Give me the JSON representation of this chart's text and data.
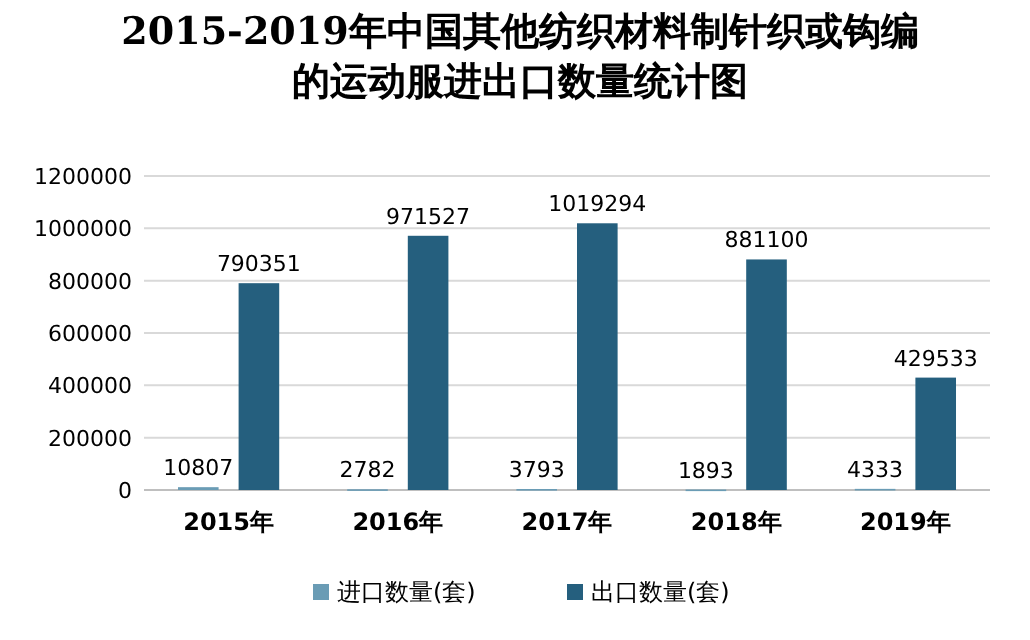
{
  "chart_data": {
    "type": "bar",
    "title": "2015-2019年中国其他纺织材料制针织或钩编的运动服进出口数量统计图",
    "categories": [
      "2015年",
      "2016年",
      "2017年",
      "2018年",
      "2019年"
    ],
    "series": [
      {
        "name": "进口数量(套)",
        "color": "#6a9cb5",
        "values": [
          10807,
          2782,
          3793,
          1893,
          4333
        ]
      },
      {
        "name": "出口数量(套)",
        "color": "#255f7e",
        "values": [
          790351,
          971527,
          1019294,
          881100,
          429533
        ]
      }
    ],
    "ylim": [
      0,
      1200000
    ],
    "yticks": [
      0,
      200000,
      400000,
      600000,
      800000,
      1000000,
      1200000
    ],
    "grid": "y",
    "legend": "bottom",
    "data_labels": true
  }
}
